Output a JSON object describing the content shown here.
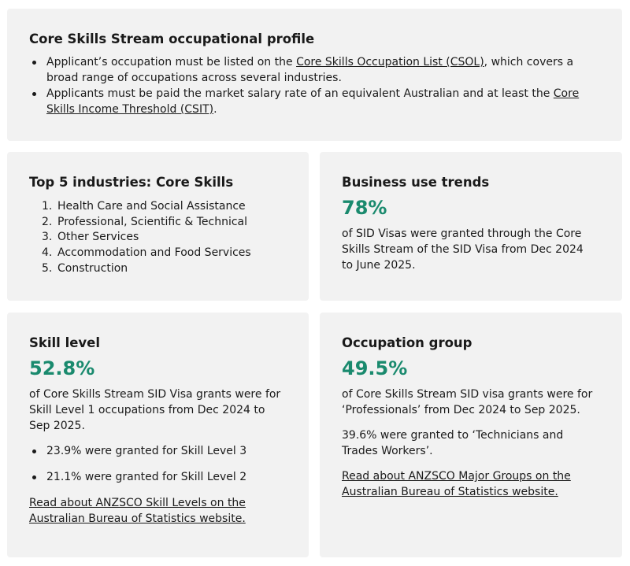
{
  "profile": {
    "title": "Core Skills Stream occupational profile",
    "bullet1_pre": "Applicant’s occupation must be listed on the ",
    "bullet1_link": "Core Skills Occupation List (CSOL)",
    "bullet1_post": ", which covers a broad range of occupations across several industries.",
    "bullet2_pre": "Applicants must be paid the market salary rate of an equivalent Australian and at least the ",
    "bullet2_link": "Core Skills Income Threshold (CSIT)",
    "bullet2_post": "."
  },
  "industries": {
    "title": "Top 5 industries: Core Skills",
    "items": [
      {
        "num": "1.",
        "label": "Health Care and Social Assistance"
      },
      {
        "num": "2.",
        "label": "Professional, Scientific & Technical"
      },
      {
        "num": "3.",
        "label": "Other Services"
      },
      {
        "num": "4.",
        "label": "Accommodation and Food Services"
      },
      {
        "num": "5.",
        "label": "Construction"
      }
    ]
  },
  "business": {
    "title": "Business use trends",
    "stat": "78%",
    "text": "of SID Visas were granted through the Core Skills Stream of the SID Visa from Dec 2024 to June 2025."
  },
  "skill": {
    "title": "Skill level",
    "stat": "52.8%",
    "text": "of Core Skills Stream SID Visa grants were for Skill Level 1 occupations from Dec 2024 to Sep 2025.",
    "bullets": [
      "23.9% were granted for Skill Level 3",
      "21.1% were granted for Skill Level 2"
    ],
    "link": "Read about ANZSCO Skill Levels on the Australian Bureau of Statistics website."
  },
  "occupation": {
    "title": "Occupation group",
    "stat": "49.5%",
    "text": "of Core Skills Stream SID visa grants were for ‘Professionals’ from Dec 2024 to Sep 2025.",
    "text2": "39.6% were granted to ‘Technicians and Trades Workers’.",
    "link": "Read about ANZSCO Major Groups on the Australian Bureau of Statistics website."
  }
}
